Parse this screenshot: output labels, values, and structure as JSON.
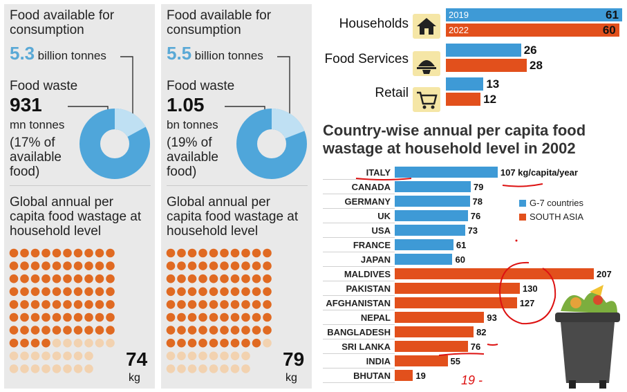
{
  "panel_2019": {
    "food_available_title": "Food available for consumption",
    "food_available_value": "5.3",
    "food_available_unit": "billion tonnes",
    "food_waste_title": "Food waste",
    "food_waste_value": "931",
    "food_waste_unit": "mn tonnes",
    "food_waste_pct": "(17% of available food)",
    "donut_fraction": 0.17,
    "capita_title": "Global annual per capita food wastage at household level",
    "capita_value": "74",
    "capita_unit": "kg"
  },
  "panel_2022": {
    "food_available_title": "Food available for consumption",
    "food_available_value": "5.5",
    "food_available_unit": "billion tonnes",
    "food_waste_title": "Food waste",
    "food_waste_value": "1.05",
    "food_waste_unit": "bn tonnes",
    "food_waste_pct": "(19% of available food)",
    "donut_fraction": 0.19,
    "capita_title": "Global annual per capita food wastage at household level",
    "capita_value": "79",
    "capita_unit": "kg"
  },
  "colors": {
    "blue": "#3e9ad6",
    "orange": "#e2501c",
    "dot_orange": "#e06a22",
    "dot_pale": "#f2d2b0",
    "donut": "#4fa6da"
  },
  "chart_data": [
    {
      "type": "bar",
      "orientation": "horizontal",
      "categories": [
        "Households",
        "Food Services",
        "Retail"
      ],
      "series": [
        {
          "name": "2019",
          "values": [
            61,
            26,
            13
          ]
        },
        {
          "name": "2022",
          "values": [
            60,
            28,
            12
          ]
        }
      ],
      "icons": [
        "house-icon",
        "food-service-icon",
        "cart-icon"
      ]
    },
    {
      "type": "bar",
      "orientation": "horizontal",
      "title": "Country-wise annual per capita food wastage at household level in 2002",
      "unit_label": "kg/capita/year",
      "categories": [
        "ITALY",
        "CANADA",
        "GERMANY",
        "UK",
        "USA",
        "FRANCE",
        "JAPAN",
        "MALDIVES",
        "PAKISTAN",
        "AFGHANISTAN",
        "NEPAL",
        "BANGLADESH",
        "SRI LANKA",
        "INDIA",
        "BHUTAN"
      ],
      "values": [
        107,
        79,
        78,
        76,
        73,
        61,
        60,
        207,
        130,
        127,
        93,
        82,
        76,
        55,
        19
      ],
      "groups": [
        "g7",
        "g7",
        "g7",
        "g7",
        "g7",
        "g7",
        "g7",
        "sa",
        "sa",
        "sa",
        "sa",
        "sa",
        "sa",
        "sa",
        "sa"
      ],
      "legend": [
        {
          "key": "g7",
          "label": "G-7 countries"
        },
        {
          "key": "sa",
          "label": "SOUTH ASIA"
        }
      ],
      "annotation": "19 -"
    }
  ]
}
